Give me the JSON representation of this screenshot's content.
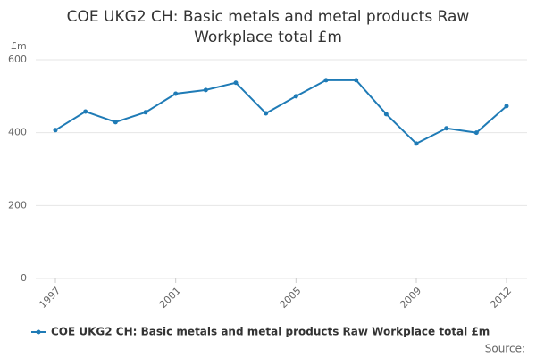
{
  "chart_data": {
    "type": "line",
    "title": "COE UKG2 CH: Basic metals and metal products Raw Workplace total £m",
    "y_label": "£m",
    "source": "Source:",
    "x": [
      1997,
      1998,
      1999,
      2000,
      2001,
      2002,
      2003,
      2004,
      2005,
      2006,
      2007,
      2008,
      2009,
      2010,
      2011,
      2012
    ],
    "xlim": [
      1997,
      2012
    ],
    "xticks": [
      1997,
      2001,
      2005,
      2009,
      2012
    ],
    "series": [
      {
        "name": "COE UKG2 CH: Basic metals and metal products Raw Workplace total £m",
        "color": "#1f7bb6",
        "values": [
          407,
          458,
          429,
          456,
          507,
          517,
          537,
          453,
          500,
          544,
          544,
          451,
          370,
          412,
          400,
          473
        ]
      }
    ],
    "ylim": [
      0,
      600
    ],
    "yticks": [
      0,
      200,
      400,
      600
    ],
    "grid": true
  }
}
